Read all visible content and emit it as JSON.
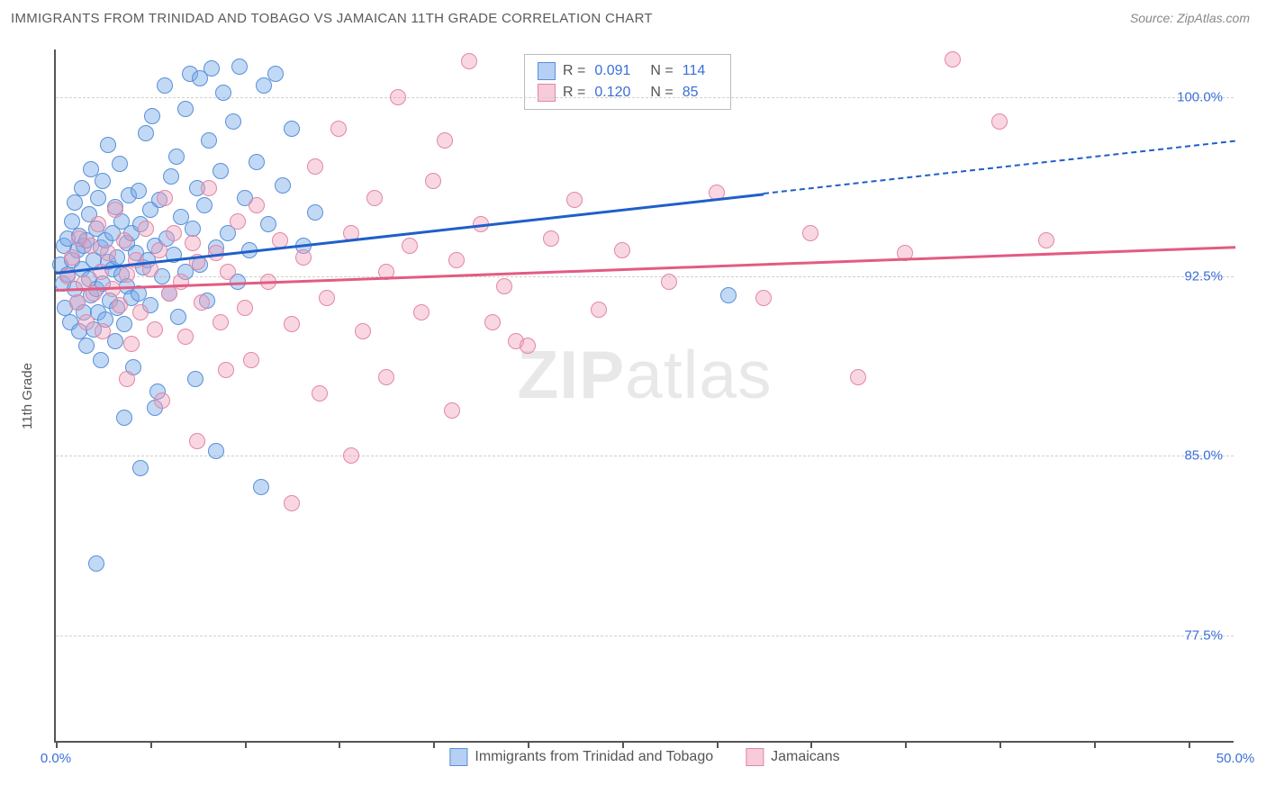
{
  "title": "IMMIGRANTS FROM TRINIDAD AND TOBAGO VS JAMAICAN 11TH GRADE CORRELATION CHART",
  "source_label": "Source:",
  "source_value": "ZipAtlas.com",
  "watermark_zip": "ZIP",
  "watermark_atlas": "atlas",
  "ylabel": "11th Grade",
  "chart": {
    "type": "scatter",
    "xlim": [
      0,
      50
    ],
    "ylim": [
      73,
      102
    ],
    "xtick_positions": [
      0,
      4,
      8,
      12,
      16,
      20,
      24,
      28,
      32,
      36,
      40,
      44,
      48
    ],
    "xtick_labels": {
      "0": "0.0%",
      "50": "50.0%"
    },
    "ytick_positions": [
      77.5,
      85.0,
      92.5,
      100.0
    ],
    "ytick_labels": [
      "77.5%",
      "85.0%",
      "92.5%",
      "100.0%"
    ],
    "background_color": "#ffffff",
    "grid_color": "#d0d0d0",
    "axis_color": "#555555",
    "label_color": "#3b6fd8",
    "series": [
      {
        "name": "Immigrants from Trinidad and Tobago",
        "r_label": "R = ",
        "r_value": "0.091",
        "n_label": "N = ",
        "n_value": "114",
        "fill": "rgba(120,170,235,0.45)",
        "stroke": "#5a8fd6",
        "swatch_fill": "rgba(120,170,235,0.55)",
        "swatch_stroke": "#5a8fd6",
        "line_color": "#1f5fc9",
        "regression": {
          "x0": 0,
          "y0": 92.7,
          "x1_solid": 30,
          "y1_solid": 96.0,
          "x1_dash": 50,
          "y1_dash": 98.2
        },
        "points": [
          [
            0.2,
            93.0
          ],
          [
            0.3,
            92.2
          ],
          [
            0.4,
            91.2
          ],
          [
            0.35,
            93.8
          ],
          [
            0.5,
            92.6
          ],
          [
            0.5,
            94.1
          ],
          [
            0.6,
            90.6
          ],
          [
            0.7,
            93.2
          ],
          [
            0.7,
            94.8
          ],
          [
            0.8,
            92.0
          ],
          [
            0.8,
            95.6
          ],
          [
            0.9,
            91.4
          ],
          [
            0.9,
            93.6
          ],
          [
            1.0,
            90.2
          ],
          [
            1.0,
            94.2
          ],
          [
            1.1,
            92.8
          ],
          [
            1.1,
            96.2
          ],
          [
            1.2,
            91.0
          ],
          [
            1.2,
            93.8
          ],
          [
            1.3,
            94.0
          ],
          [
            1.3,
            89.6
          ],
          [
            1.4,
            92.4
          ],
          [
            1.4,
            95.1
          ],
          [
            1.5,
            91.7
          ],
          [
            1.5,
            97.0
          ],
          [
            1.6,
            93.2
          ],
          [
            1.6,
            90.3
          ],
          [
            1.7,
            94.5
          ],
          [
            1.7,
            92.0
          ],
          [
            1.8,
            95.8
          ],
          [
            1.8,
            91.0
          ],
          [
            1.9,
            93.7
          ],
          [
            1.9,
            89.0
          ],
          [
            2.0,
            92.2
          ],
          [
            2.0,
            96.5
          ],
          [
            2.1,
            90.7
          ],
          [
            2.1,
            94.0
          ],
          [
            2.2,
            93.1
          ],
          [
            2.2,
            98.0
          ],
          [
            2.3,
            91.5
          ],
          [
            2.4,
            94.3
          ],
          [
            2.4,
            92.8
          ],
          [
            2.5,
            89.8
          ],
          [
            2.5,
            95.4
          ],
          [
            2.6,
            93.3
          ],
          [
            2.6,
            91.2
          ],
          [
            2.7,
            97.2
          ],
          [
            2.8,
            92.6
          ],
          [
            2.8,
            94.8
          ],
          [
            2.9,
            90.5
          ],
          [
            3.0,
            93.9
          ],
          [
            3.0,
            92.1
          ],
          [
            3.1,
            95.9
          ],
          [
            3.2,
            91.6
          ],
          [
            3.2,
            94.3
          ],
          [
            3.3,
            88.7
          ],
          [
            3.4,
            93.5
          ],
          [
            3.5,
            96.1
          ],
          [
            3.5,
            91.8
          ],
          [
            3.6,
            94.7
          ],
          [
            3.7,
            92.9
          ],
          [
            3.8,
            98.5
          ],
          [
            3.9,
            93.2
          ],
          [
            4.0,
            95.3
          ],
          [
            4.0,
            91.3
          ],
          [
            4.1,
            99.2
          ],
          [
            4.2,
            93.8
          ],
          [
            4.3,
            87.7
          ],
          [
            4.4,
            95.7
          ],
          [
            4.5,
            92.5
          ],
          [
            4.6,
            100.5
          ],
          [
            4.7,
            94.1
          ],
          [
            4.8,
            91.8
          ],
          [
            4.9,
            96.7
          ],
          [
            5.0,
            93.4
          ],
          [
            5.1,
            97.5
          ],
          [
            5.2,
            90.8
          ],
          [
            5.3,
            95.0
          ],
          [
            5.5,
            99.5
          ],
          [
            5.5,
            92.7
          ],
          [
            5.7,
            101.0
          ],
          [
            5.8,
            94.5
          ],
          [
            5.9,
            88.2
          ],
          [
            6.0,
            96.2
          ],
          [
            6.1,
            93.0
          ],
          [
            6.1,
            100.8
          ],
          [
            6.3,
            95.5
          ],
          [
            6.4,
            91.5
          ],
          [
            6.5,
            98.2
          ],
          [
            6.6,
            101.2
          ],
          [
            6.8,
            93.7
          ],
          [
            7.0,
            96.9
          ],
          [
            7.1,
            100.2
          ],
          [
            7.3,
            94.3
          ],
          [
            7.5,
            99.0
          ],
          [
            7.7,
            92.3
          ],
          [
            7.8,
            101.3
          ],
          [
            8.0,
            95.8
          ],
          [
            8.2,
            93.6
          ],
          [
            8.5,
            97.3
          ],
          [
            8.8,
            100.5
          ],
          [
            9.0,
            94.7
          ],
          [
            9.3,
            101.0
          ],
          [
            9.6,
            96.3
          ],
          [
            10.0,
            98.7
          ],
          [
            10.5,
            93.8
          ],
          [
            11.0,
            95.2
          ],
          [
            1.7,
            80.5
          ],
          [
            2.9,
            86.6
          ],
          [
            4.2,
            87.0
          ],
          [
            3.6,
            84.5
          ],
          [
            8.7,
            83.7
          ],
          [
            6.8,
            85.2
          ],
          [
            28.5,
            91.7
          ]
        ]
      },
      {
        "name": "Jamaicans",
        "r_label": "R = ",
        "r_value": "0.120",
        "n_label": "N = ",
        "n_value": "85",
        "fill": "rgba(240,160,185,0.42)",
        "stroke": "#e187a4",
        "swatch_fill": "rgba(240,160,185,0.55)",
        "swatch_stroke": "#e187a4",
        "line_color": "#e35b82",
        "regression": {
          "x0": 0,
          "y0": 92.0,
          "x1_solid": 50,
          "y1_solid": 93.8,
          "x1_dash": 50,
          "y1_dash": 93.8
        },
        "points": [
          [
            0.5,
            92.5
          ],
          [
            0.7,
            93.3
          ],
          [
            0.9,
            91.4
          ],
          [
            1.0,
            94.1
          ],
          [
            1.2,
            92.2
          ],
          [
            1.3,
            90.6
          ],
          [
            1.5,
            93.8
          ],
          [
            1.6,
            91.8
          ],
          [
            1.8,
            94.7
          ],
          [
            1.9,
            92.7
          ],
          [
            2.0,
            90.2
          ],
          [
            2.2,
            93.5
          ],
          [
            2.4,
            92.0
          ],
          [
            2.5,
            95.3
          ],
          [
            2.7,
            91.3
          ],
          [
            2.9,
            94.0
          ],
          [
            3.0,
            92.6
          ],
          [
            3.2,
            89.7
          ],
          [
            3.4,
            93.2
          ],
          [
            3.6,
            91.0
          ],
          [
            3.8,
            94.5
          ],
          [
            4.0,
            92.8
          ],
          [
            4.2,
            90.3
          ],
          [
            4.4,
            93.6
          ],
          [
            4.6,
            95.8
          ],
          [
            4.8,
            91.8
          ],
          [
            5.0,
            94.3
          ],
          [
            5.3,
            92.3
          ],
          [
            5.5,
            90.0
          ],
          [
            5.8,
            93.9
          ],
          [
            6.0,
            93.1
          ],
          [
            6.2,
            91.4
          ],
          [
            6.5,
            96.2
          ],
          [
            6.8,
            93.5
          ],
          [
            7.0,
            90.6
          ],
          [
            7.3,
            92.7
          ],
          [
            7.7,
            94.8
          ],
          [
            8.0,
            91.2
          ],
          [
            8.5,
            95.5
          ],
          [
            9.0,
            92.3
          ],
          [
            9.5,
            94.0
          ],
          [
            10.0,
            90.5
          ],
          [
            10.5,
            93.3
          ],
          [
            11.0,
            97.1
          ],
          [
            11.5,
            91.6
          ],
          [
            12.0,
            98.7
          ],
          [
            12.5,
            94.3
          ],
          [
            13.0,
            90.2
          ],
          [
            13.5,
            95.8
          ],
          [
            14.0,
            92.7
          ],
          [
            14.5,
            100.0
          ],
          [
            15.0,
            93.8
          ],
          [
            15.5,
            91.0
          ],
          [
            16.0,
            96.5
          ],
          [
            16.5,
            98.2
          ],
          [
            17.0,
            93.2
          ],
          [
            17.5,
            101.5
          ],
          [
            18.0,
            94.7
          ],
          [
            18.5,
            90.6
          ],
          [
            19.0,
            92.1
          ],
          [
            19.5,
            89.8
          ],
          [
            20.0,
            89.6
          ],
          [
            21.0,
            94.1
          ],
          [
            22.0,
            95.7
          ],
          [
            23.0,
            91.1
          ],
          [
            24.0,
            93.6
          ],
          [
            26.0,
            92.3
          ],
          [
            28.0,
            96.0
          ],
          [
            30.0,
            91.6
          ],
          [
            32.0,
            94.3
          ],
          [
            34.0,
            88.3
          ],
          [
            36.0,
            93.5
          ],
          [
            38.0,
            101.6
          ],
          [
            40.0,
            99.0
          ],
          [
            42.0,
            94.0
          ],
          [
            4.5,
            87.3
          ],
          [
            7.2,
            88.6
          ],
          [
            11.2,
            87.6
          ],
          [
            12.5,
            85.0
          ],
          [
            16.8,
            86.9
          ],
          [
            6.0,
            85.6
          ],
          [
            14.0,
            88.3
          ],
          [
            10.0,
            83.0
          ],
          [
            3.0,
            88.2
          ],
          [
            8.3,
            89.0
          ]
        ]
      }
    ]
  }
}
